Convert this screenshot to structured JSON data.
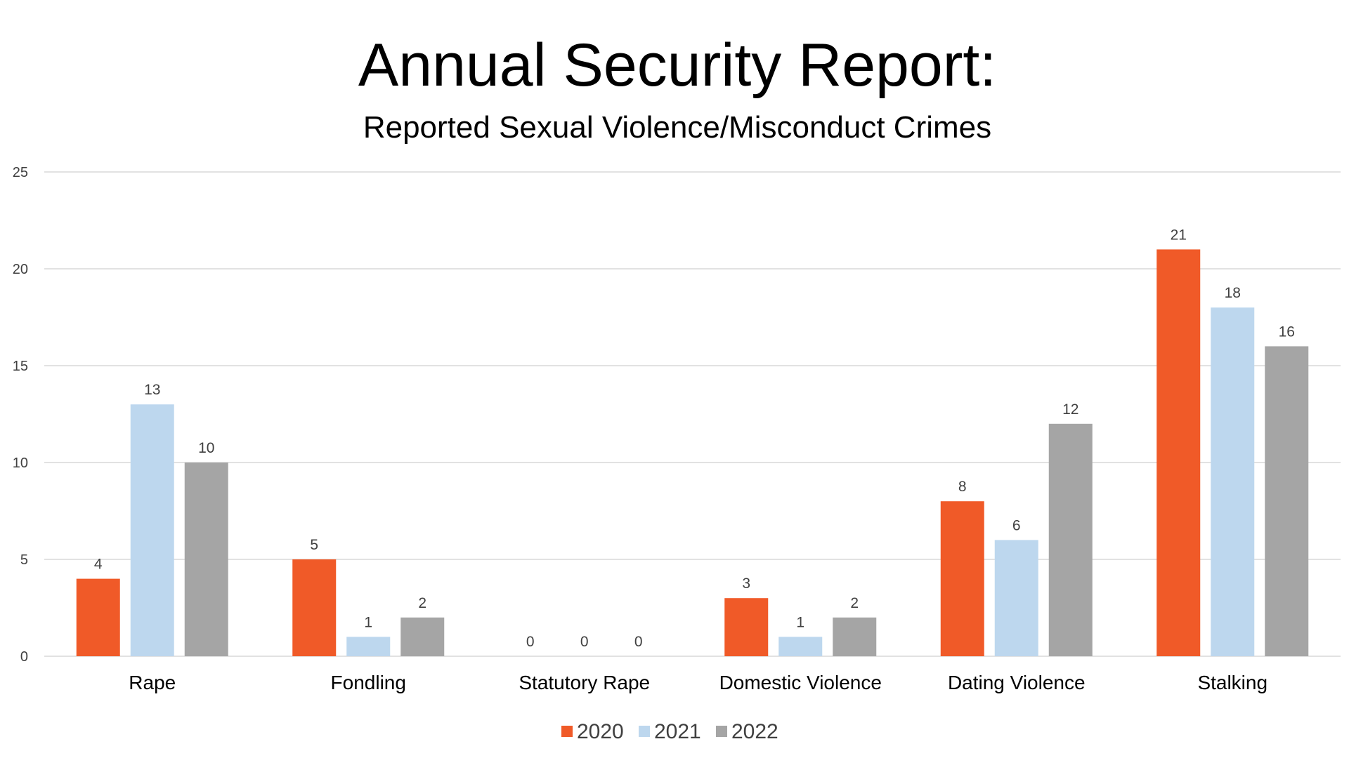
{
  "chart_data": {
    "type": "bar",
    "title": "Annual Security Report:",
    "subtitle": "Reported Sexual Violence/Misconduct Crimes",
    "categories": [
      "Rape",
      "Fondling",
      "Statutory Rape",
      "Domestic Violence",
      "Dating Violence",
      "Stalking"
    ],
    "series": [
      {
        "name": "2020",
        "color": "#F05A28",
        "values": [
          4,
          5,
          0,
          3,
          8,
          21
        ]
      },
      {
        "name": "2021",
        "color": "#BDD7EE",
        "values": [
          13,
          1,
          0,
          1,
          6,
          18
        ]
      },
      {
        "name": "2022",
        "color": "#A5A5A5",
        "values": [
          10,
          2,
          0,
          2,
          12,
          16
        ]
      }
    ],
    "ylim": [
      0,
      25
    ],
    "yticks": [
      "0",
      "5",
      "10",
      "15",
      "20",
      "25"
    ],
    "grid": true,
    "legend": "bottom",
    "data_labels": true
  }
}
